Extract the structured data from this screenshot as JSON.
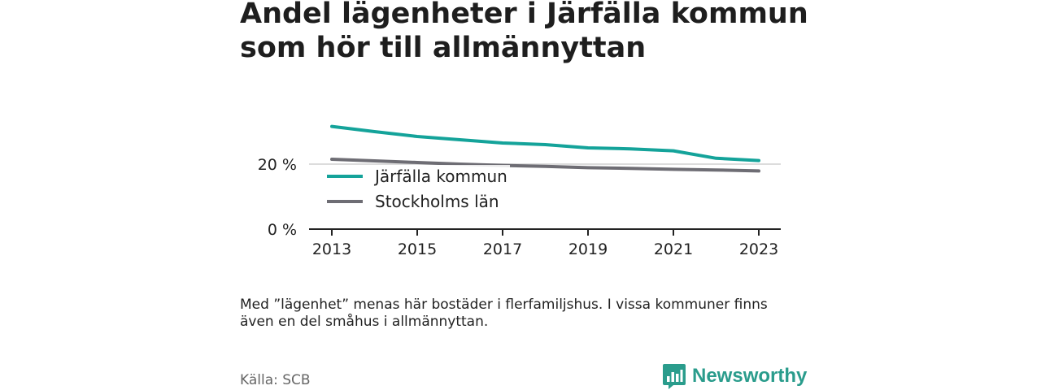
{
  "title_lines": [
    "Andel lägenheter i Järfälla kommun",
    "som hör till allmännyttan"
  ],
  "chart_data": {
    "type": "line",
    "x": [
      2013,
      2014,
      2015,
      2016,
      2017,
      2018,
      2019,
      2020,
      2021,
      2022,
      2023
    ],
    "xticks": [
      "2013",
      "2015",
      "2017",
      "2019",
      "2021",
      "2023"
    ],
    "yticks": [
      "0 %",
      "20 %"
    ],
    "ylim": [
      0,
      32
    ],
    "grid": true,
    "legend_position": "center-left",
    "series": [
      {
        "name": "Järfälla kommun",
        "color": "#14a39a",
        "values": [
          31.6,
          30.0,
          28.5,
          27.5,
          26.5,
          26.0,
          25.0,
          24.7,
          24.1,
          21.8,
          21.1
        ]
      },
      {
        "name": "Stockholms län",
        "color": "#6e6d74",
        "values": [
          21.5,
          21.0,
          20.5,
          20.0,
          19.6,
          19.3,
          18.9,
          18.7,
          18.4,
          18.2,
          17.9
        ]
      }
    ]
  },
  "note": "Med ”lägenhet” menas här bostäder i flerfamiljshus. I vissa kommuner finns även en del småhus i allmännyttan.",
  "source": "Källa: SCB",
  "brand": {
    "name": "Newsworthy",
    "color": "#2a9c8c"
  }
}
